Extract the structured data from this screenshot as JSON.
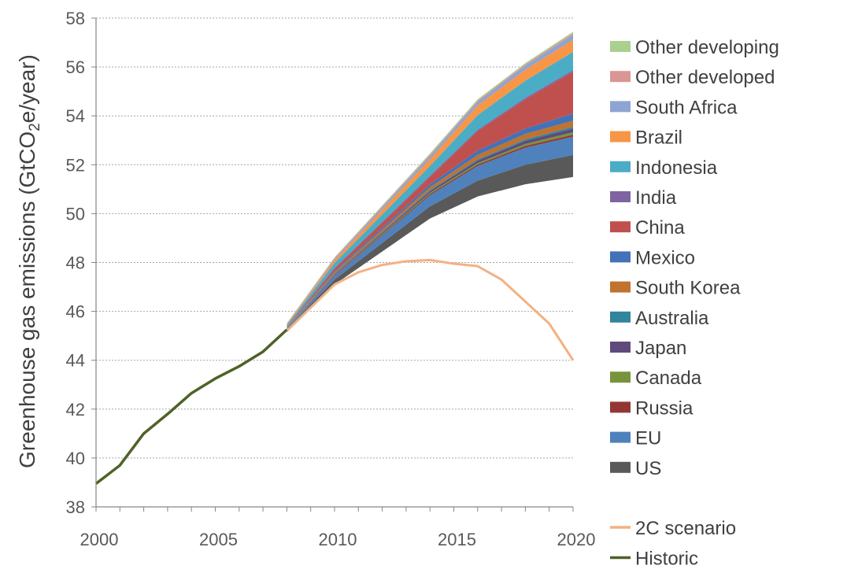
{
  "chart_data": {
    "type": "area",
    "ylabel": "Greenhouse gas emissions (GtCO₂e/year)",
    "ylabel_parts": [
      "Greenhouse gas emissions (GtCO",
      "2",
      "e/year)"
    ],
    "xlabel": "",
    "xlim": [
      2000,
      2020
    ],
    "ylim": [
      38,
      58
    ],
    "x_ticks": [
      2000,
      2005,
      2010,
      2015,
      2020
    ],
    "y_ticks": [
      38,
      40,
      42,
      44,
      46,
      48,
      50,
      52,
      54,
      56,
      58
    ],
    "grid": "horizontal",
    "legend_position": "right",
    "x_projection": [
      2008,
      2010,
      2014,
      2016,
      2018,
      2020
    ],
    "base_baseline": [
      45.2,
      47.1,
      49.8,
      50.7,
      51.2,
      51.5
    ],
    "stacked_series": [
      {
        "name": "US",
        "color": "#595959",
        "increments": [
          0.05,
          0.2,
          0.5,
          0.65,
          0.8,
          0.9
        ]
      },
      {
        "name": "EU",
        "color": "#4f81bd",
        "increments": [
          0.05,
          0.15,
          0.45,
          0.6,
          0.7,
          0.75
        ]
      },
      {
        "name": "Russia",
        "color": "#943634",
        "increments": [
          0.01,
          0.03,
          0.05,
          0.06,
          0.07,
          0.08
        ]
      },
      {
        "name": "Canada",
        "color": "#77933c",
        "increments": [
          0.01,
          0.02,
          0.05,
          0.06,
          0.08,
          0.1
        ]
      },
      {
        "name": "Japan",
        "color": "#604a7b",
        "increments": [
          0.01,
          0.03,
          0.07,
          0.1,
          0.13,
          0.15
        ]
      },
      {
        "name": "Australia",
        "color": "#31859c",
        "increments": [
          0.01,
          0.02,
          0.04,
          0.05,
          0.06,
          0.07
        ]
      },
      {
        "name": "South Korea",
        "color": "#c0722f",
        "increments": [
          0.01,
          0.05,
          0.12,
          0.18,
          0.22,
          0.25
        ]
      },
      {
        "name": "Mexico",
        "color": "#4472b8",
        "increments": [
          0.01,
          0.05,
          0.12,
          0.18,
          0.22,
          0.3
        ]
      },
      {
        "name": "China",
        "color": "#c0504d",
        "increments": [
          0.02,
          0.1,
          0.3,
          0.8,
          1.2,
          1.7
        ]
      },
      {
        "name": "India",
        "color": "#8064a2",
        "increments": [
          0.01,
          0.03,
          0.05,
          0.05,
          0.06,
          0.07
        ]
      },
      {
        "name": "Indonesia",
        "color": "#4bacc6",
        "increments": [
          0.05,
          0.2,
          0.4,
          0.6,
          0.7,
          0.75
        ]
      },
      {
        "name": "Brazil",
        "color": "#f79646",
        "increments": [
          0.03,
          0.1,
          0.28,
          0.4,
          0.45,
          0.5
        ]
      },
      {
        "name": "South Africa",
        "color": "#8ea4d2",
        "increments": [
          0.01,
          0.05,
          0.13,
          0.15,
          0.17,
          0.2
        ]
      },
      {
        "name": "Other developed",
        "color": "#d99694",
        "increments": [
          0.02,
          0.05,
          0.05,
          0.05,
          0.05,
          0.06
        ]
      },
      {
        "name": "Other developing",
        "color": "#a9d08e",
        "increments": [
          0.02,
          0.03,
          0.05,
          0.05,
          0.05,
          0.06
        ]
      }
    ],
    "line_series": [
      {
        "name": "2C scenario",
        "color": "#f4b183",
        "x": [
          2008,
          2010,
          2011,
          2012,
          2013,
          2014,
          2015,
          2016,
          2017,
          2018,
          2019,
          2020
        ],
        "y": [
          45.2,
          47.1,
          47.6,
          47.9,
          48.05,
          48.1,
          47.95,
          47.85,
          47.3,
          46.4,
          45.5,
          44.0
        ]
      },
      {
        "name": "Historic",
        "color": "#4f6228",
        "x": [
          2000,
          2001,
          2002,
          2003,
          2004,
          2005,
          2006,
          2007,
          2008
        ],
        "y": [
          38.95,
          39.7,
          41.0,
          41.8,
          42.65,
          43.25,
          43.75,
          44.35,
          45.25
        ]
      }
    ],
    "legend_upper": [
      "Other developing",
      "Other developed",
      "South Africa",
      "Brazil",
      "Indonesia",
      "India",
      "China",
      "Mexico",
      "South Korea",
      "Australia",
      "Japan",
      "Canada",
      "Russia",
      "EU",
      "US"
    ],
    "legend_lower": [
      "2C scenario",
      "Historic"
    ]
  }
}
